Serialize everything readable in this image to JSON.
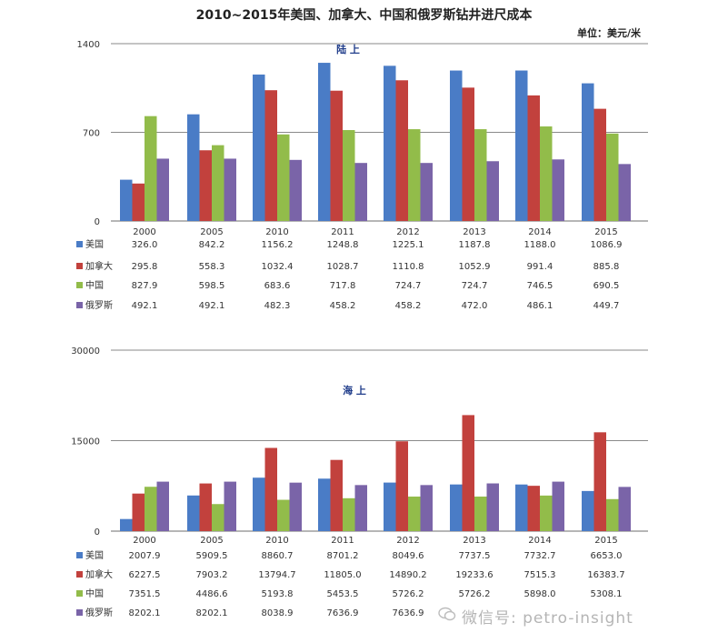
{
  "title": "2010~2015年美国、加拿大、中国和俄罗斯钻井进尺成本",
  "unit": "单位：美元/米",
  "watermark": "微信号: petro-insight",
  "colors": {
    "美国": "#4a7cc6",
    "加拿大": "#c2413d",
    "中国": "#92bc4a",
    "俄罗斯": "#7a64a8"
  },
  "chart_data": [
    {
      "type": "bar",
      "title": "陆 上",
      "categories": [
        "2000",
        "2005",
        "2010",
        "2011",
        "2012",
        "2013",
        "2014",
        "2015"
      ],
      "ylim": [
        0,
        1400
      ],
      "yticks": [
        "0",
        "700",
        "1400"
      ],
      "series": [
        {
          "name": "美国",
          "values": [
            326.0,
            842.2,
            1156.2,
            1248.8,
            1225.1,
            1187.8,
            1188.0,
            1086.9
          ],
          "labels": [
            "326.0",
            "842.2",
            "1156.2",
            "1248.8",
            "1225.1",
            "1187.8",
            "1188.0",
            "1086.9"
          ]
        },
        {
          "name": "加拿大",
          "values": [
            295.8,
            558.3,
            1032.4,
            1028.7,
            1110.8,
            1052.9,
            991.4,
            885.8
          ],
          "labels": [
            "295.8",
            "558.3",
            "1032.4",
            "1028.7",
            "1110.8",
            "1052.9",
            "991.4",
            "885.8"
          ]
        },
        {
          "name": "中国",
          "values": [
            827.9,
            598.5,
            683.6,
            717.8,
            724.7,
            724.7,
            746.5,
            690.5
          ],
          "labels": [
            "827.9",
            "598.5",
            "683.6",
            "717.8",
            "724.7",
            "724.7",
            "746.5",
            "690.5"
          ]
        },
        {
          "name": "俄罗斯",
          "values": [
            492.1,
            492.1,
            482.3,
            458.2,
            458.2,
            472.0,
            486.1,
            449.7
          ],
          "labels": [
            "492.1",
            "492.1",
            "482.3",
            "458.2",
            "458.2",
            "472.0",
            "486.1",
            "449.7"
          ]
        }
      ]
    },
    {
      "type": "bar",
      "title": "海 上",
      "categories": [
        "2000",
        "2005",
        "2010",
        "2011",
        "2012",
        "2013",
        "2014",
        "2015"
      ],
      "ylim": [
        0,
        30000
      ],
      "yticks": [
        "0",
        "15000",
        "30000"
      ],
      "series": [
        {
          "name": "美国",
          "values": [
            2007.9,
            5909.5,
            8860.7,
            8701.2,
            8049.6,
            7737.5,
            7732.7,
            6653.0
          ],
          "labels": [
            "2007.9",
            "5909.5",
            "8860.7",
            "8701.2",
            "8049.6",
            "7737.5",
            "7732.7",
            "6653.0"
          ]
        },
        {
          "name": "加拿大",
          "values": [
            6227.5,
            7903.2,
            13794.7,
            11805.0,
            14890.2,
            19233.6,
            7515.3,
            16383.7
          ],
          "labels": [
            "6227.5",
            "7903.2",
            "13794.7",
            "11805.0",
            "14890.2",
            "19233.6",
            "7515.3",
            "16383.7"
          ]
        },
        {
          "name": "中国",
          "values": [
            7351.5,
            4486.6,
            5193.8,
            5453.5,
            5726.2,
            5726.2,
            5898.0,
            5308.1
          ],
          "labels": [
            "7351.5",
            "4486.6",
            "5193.8",
            "5453.5",
            "5726.2",
            "5726.2",
            "5898.0",
            "5308.1"
          ]
        },
        {
          "name": "俄罗斯",
          "values": [
            8202.1,
            8202.1,
            8038.9,
            7636.9,
            7636.9,
            7911.2,
            8202.1,
            7331.2
          ],
          "labels": [
            "8202.1",
            "8202.1",
            "8038.9",
            "7636.9",
            "7636.9",
            "",
            "",
            ""
          ]
        }
      ]
    }
  ]
}
